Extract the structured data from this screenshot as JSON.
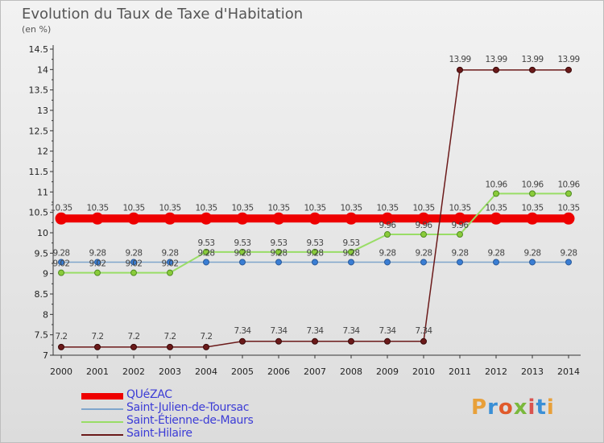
{
  "header": {
    "title": "Evolution du Taux de Taxe d'Habitation",
    "subtitle": "(en %)"
  },
  "logo": {
    "text": "Proxiti",
    "colors": [
      "#e8a03a",
      "#3a8fd6",
      "#e05a2b",
      "#7ab83c",
      "#d9534f",
      "#3a8fd6",
      "#e8a03a"
    ]
  },
  "chart_data": {
    "type": "line",
    "title": "Evolution du Taux de Taxe d'Habitation",
    "ylabel": "(en %)",
    "xlabel": "",
    "x": [
      "2000",
      "2001",
      "2002",
      "2003",
      "2004",
      "2005",
      "2006",
      "2007",
      "2008",
      "2009",
      "2010",
      "2011",
      "2012",
      "2013",
      "2014"
    ],
    "ylim": [
      7,
      14.5
    ],
    "yticks": [
      "7",
      "7.5",
      "8",
      "8.5",
      "9",
      "9.5",
      "10",
      "10.5",
      "11",
      "11.5",
      "12",
      "12.5",
      "13",
      "13.5",
      "14",
      "14.5"
    ],
    "grid": false,
    "legend_position": "bottom-left",
    "series": [
      {
        "name": "QUéZAC",
        "color": "#ee0000",
        "values": [
          10.35,
          10.35,
          10.35,
          10.35,
          10.35,
          10.35,
          10.35,
          10.35,
          10.35,
          10.35,
          10.35,
          10.35,
          10.35,
          10.35,
          10.35
        ],
        "labels": [
          "10.35",
          "10.35",
          "10.35",
          "10.35",
          "10.35",
          "10.35",
          "10.35",
          "10.35",
          "10.35",
          "10.35",
          "10.35",
          "10.35",
          "10.35",
          "10.35",
          "10.35"
        ]
      },
      {
        "name": "Saint-Julien-de-Toursac",
        "color": "#7fa6cc",
        "values": [
          9.28,
          9.28,
          9.28,
          9.28,
          9.28,
          9.28,
          9.28,
          9.28,
          9.28,
          9.28,
          9.28,
          9.28,
          9.28,
          9.28,
          9.28
        ],
        "labels": [
          "9.28",
          "9.28",
          "9.28",
          "9.28",
          "9.28",
          "9.28",
          "9.28",
          "9.28",
          "9.28",
          "9.28",
          "9.28",
          "9.28",
          "9.28",
          "9.28",
          "9.28"
        ]
      },
      {
        "name": "Saint-Étienne-de-Maurs",
        "color": "#99dd66",
        "values": [
          9.02,
          9.02,
          9.02,
          9.02,
          9.53,
          9.53,
          9.53,
          9.53,
          9.53,
          9.96,
          9.96,
          9.96,
          10.96,
          10.96,
          10.96
        ],
        "labels": [
          "9.02",
          "9.02",
          "9.02",
          "9.02",
          "9.53",
          "9.53",
          "9.53",
          "9.53",
          "9.53",
          "9.96",
          "9.96",
          "9.96",
          "10.96",
          "10.96",
          "10.96"
        ]
      },
      {
        "name": "Saint-Hilaire",
        "color": "#6b1a1a",
        "values": [
          7.2,
          7.2,
          7.2,
          7.2,
          7.2,
          7.34,
          7.34,
          7.34,
          7.34,
          7.34,
          7.34,
          13.99,
          13.99,
          13.99,
          13.99
        ],
        "labels": [
          "7.2",
          "7.2",
          "7.2",
          "7.2",
          "7.2",
          "7.34",
          "7.34",
          "7.34",
          "7.34",
          "7.34",
          "7.34",
          "13.99",
          "13.99",
          "13.99",
          "13.99"
        ]
      }
    ]
  }
}
